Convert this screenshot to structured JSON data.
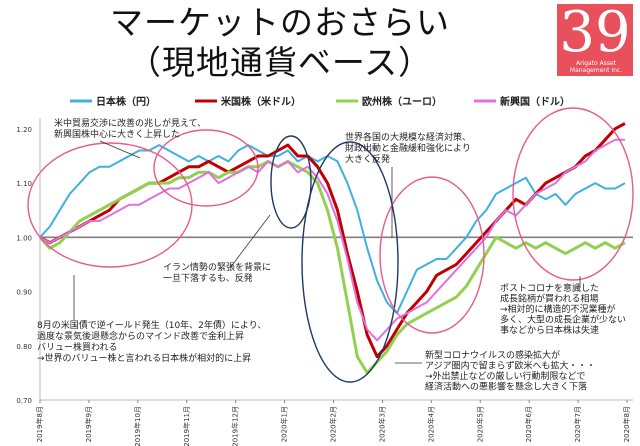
{
  "title": {
    "line1": "マーケットのおさらい",
    "line2": "（現地通貨ベース）"
  },
  "logo": {
    "number": "39",
    "text_line1": "Arigato Asset",
    "text_line2": "Management Inc."
  },
  "colors": {
    "jp": "#40b0df",
    "us": "#c00000",
    "eu": "#92d050",
    "em": "#e070e0",
    "ellipse_pink": "#e65c8a",
    "ellipse_navy": "#1f3864",
    "baseline": "#7f7f7f"
  },
  "chart_data": {
    "type": "line",
    "ylim": [
      0.7,
      1.22
    ],
    "yticks": [
      "0.70",
      "0.80",
      "0.90",
      "1.00",
      "1.10",
      "1.20"
    ],
    "ytick_values": [
      0.7,
      0.8,
      0.9,
      1.0,
      1.1,
      1.2
    ],
    "x_labels": [
      "2019年8月",
      "2019年9月",
      "2019年10月",
      "2019年11月",
      "2019年12月",
      "2020年1月",
      "2020年2月",
      "2020年3月",
      "2020年4月",
      "2020年5月",
      "2020年6月",
      "2020年7月",
      "2020年8月"
    ],
    "legend_position": "top",
    "series": [
      {
        "key": "jp",
        "name": "日本株（円）",
        "values": [
          1.0,
          1.02,
          1.05,
          1.08,
          1.1,
          1.12,
          1.13,
          1.13,
          1.14,
          1.15,
          1.16,
          1.16,
          1.17,
          1.16,
          1.15,
          1.14,
          1.15,
          1.14,
          1.15,
          1.14,
          1.16,
          1.17,
          1.16,
          1.15,
          1.15,
          1.16,
          1.14,
          1.15,
          1.14,
          1.15,
          1.14,
          1.1,
          1.05,
          0.98,
          0.92,
          0.88,
          0.86,
          0.9,
          0.94,
          0.95,
          0.96,
          0.96,
          0.98,
          1.0,
          1.03,
          1.05,
          1.08,
          1.09,
          1.1,
          1.11,
          1.08,
          1.07,
          1.08,
          1.06,
          1.08,
          1.09,
          1.1,
          1.09,
          1.09,
          1.1
        ]
      },
      {
        "key": "us",
        "name": "米国株（米ドル）",
        "values": [
          1.0,
          0.99,
          1.0,
          1.01,
          1.02,
          1.03,
          1.04,
          1.05,
          1.07,
          1.08,
          1.09,
          1.1,
          1.1,
          1.11,
          1.12,
          1.13,
          1.13,
          1.14,
          1.13,
          1.12,
          1.13,
          1.14,
          1.15,
          1.15,
          1.16,
          1.17,
          1.15,
          1.15,
          1.13,
          1.1,
          1.05,
          0.97,
          0.9,
          0.82,
          0.78,
          0.8,
          0.83,
          0.86,
          0.88,
          0.9,
          0.93,
          0.94,
          0.95,
          0.97,
          0.99,
          1.01,
          1.03,
          1.05,
          1.07,
          1.06,
          1.08,
          1.1,
          1.11,
          1.12,
          1.13,
          1.15,
          1.16,
          1.18,
          1.2,
          1.21
        ]
      },
      {
        "key": "eu",
        "name": "欧州株（ユーロ）",
        "values": [
          1.0,
          0.98,
          0.99,
          1.01,
          1.03,
          1.04,
          1.05,
          1.06,
          1.07,
          1.08,
          1.09,
          1.1,
          1.1,
          1.1,
          1.11,
          1.11,
          1.12,
          1.12,
          1.11,
          1.12,
          1.12,
          1.13,
          1.13,
          1.14,
          1.13,
          1.14,
          1.13,
          1.12,
          1.1,
          1.05,
          0.98,
          0.88,
          0.78,
          0.75,
          0.77,
          0.79,
          0.82,
          0.84,
          0.85,
          0.86,
          0.87,
          0.88,
          0.89,
          0.91,
          0.94,
          0.97,
          1.0,
          0.99,
          0.98,
          0.99,
          0.98,
          0.99,
          0.98,
          0.97,
          0.98,
          0.99,
          0.98,
          0.99,
          0.98,
          0.99
        ]
      },
      {
        "key": "em",
        "name": "新興国（ドル）",
        "values": [
          1.0,
          0.99,
          1.0,
          1.01,
          1.02,
          1.03,
          1.03,
          1.04,
          1.05,
          1.06,
          1.06,
          1.07,
          1.08,
          1.09,
          1.09,
          1.1,
          1.11,
          1.12,
          1.1,
          1.11,
          1.12,
          1.13,
          1.12,
          1.14,
          1.13,
          1.14,
          1.12,
          1.13,
          1.11,
          1.08,
          1.03,
          0.96,
          0.88,
          0.83,
          0.81,
          0.83,
          0.85,
          0.86,
          0.87,
          0.88,
          0.9,
          0.92,
          0.94,
          0.96,
          0.98,
          1.0,
          1.03,
          1.05,
          1.04,
          1.06,
          1.08,
          1.09,
          1.1,
          1.12,
          1.13,
          1.14,
          1.16,
          1.17,
          1.18,
          1.18
        ]
      }
    ]
  },
  "annotations": {
    "a1": [
      "米中貿易交渉に改善の兆しが見えて、",
      "新興国株中心に大きく上昇した"
    ],
    "a2": [
      "世界各国の大規模な経済対策、",
      "財政出動と金融緩和強化により",
      "大きく反発"
    ],
    "a3": [
      "イラン情勢の緊張を背景に",
      "一旦下落するも、反発"
    ],
    "a4": [
      "8月の米国債で逆イールド発生（10年、2年債）により、",
      "過度な景気後退懸念からのマインド改善で金利上昇",
      "バリュー株買われる",
      "→世界のバリュー株と言われる日本株が相対的に上昇"
    ],
    "a5": [
      "ポストコロナを意識した",
      "成長銘柄が買われる相場",
      "→相対的に構造的不況業種が",
      "多く、大型の成長企業が少ない",
      "事などから日本株は失速"
    ],
    "a6": [
      "新型コロナウイルスの感染拡大が",
      "アジア圏内で留まらず欧米へも拡大・・・",
      "→外出禁止などの厳しい行動制限などで",
      "経済活動への悪影響を懸念し大きく下落"
    ]
  }
}
